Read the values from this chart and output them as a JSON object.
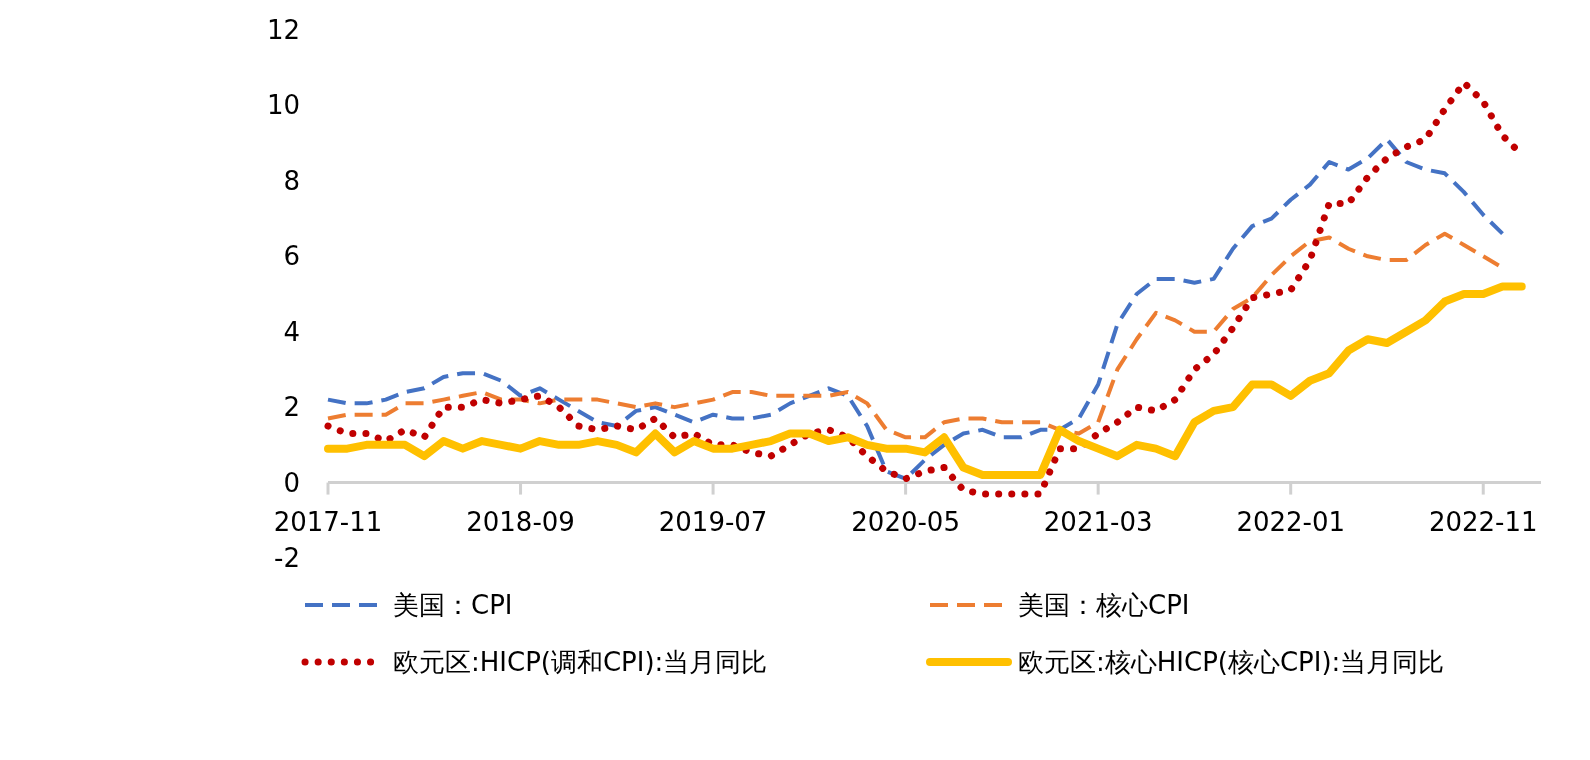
{
  "chart_data": {
    "type": "line",
    "legend": "bottom",
    "x": [
      "2017-11",
      "2017-12",
      "2018-01",
      "2018-02",
      "2018-03",
      "2018-04",
      "2018-05",
      "2018-06",
      "2018-07",
      "2018-08",
      "2018-09",
      "2018-10",
      "2018-11",
      "2018-12",
      "2019-01",
      "2019-02",
      "2019-03",
      "2019-04",
      "2019-05",
      "2019-06",
      "2019-07",
      "2019-08",
      "2019-09",
      "2019-10",
      "2019-11",
      "2019-12",
      "2020-01",
      "2020-02",
      "2020-03",
      "2020-04",
      "2020-05",
      "2020-06",
      "2020-07",
      "2020-08",
      "2020-09",
      "2020-10",
      "2020-11",
      "2020-12",
      "2021-01",
      "2021-02",
      "2021-03",
      "2021-04",
      "2021-05",
      "2021-06",
      "2021-07",
      "2021-08",
      "2021-09",
      "2021-10",
      "2021-11",
      "2021-12",
      "2022-01",
      "2022-02",
      "2022-03",
      "2022-04",
      "2022-05",
      "2022-06",
      "2022-07",
      "2022-08",
      "2022-09",
      "2022-10",
      "2022-11",
      "2022-12",
      "2023-01"
    ],
    "xlim": [
      "2017-11",
      "2023-02"
    ],
    "xticks": [
      "2017-11",
      "2018-09",
      "2019-07",
      "2020-05",
      "2021-03",
      "2022-01",
      "2022-11"
    ],
    "ylim": [
      -2,
      12
    ],
    "yticks": [
      -2,
      0,
      2,
      4,
      6,
      8,
      10,
      12
    ],
    "series": [
      {
        "name": "美国：CPI",
        "color": "#4472c4",
        "line_style": "dashed",
        "values": [
          2.2,
          2.1,
          2.1,
          2.2,
          2.4,
          2.5,
          2.8,
          2.9,
          2.9,
          2.7,
          2.3,
          2.5,
          2.2,
          1.9,
          1.6,
          1.5,
          1.9,
          2.0,
          1.8,
          1.6,
          1.8,
          1.7,
          1.7,
          1.8,
          2.1,
          2.3,
          2.5,
          2.3,
          1.5,
          0.3,
          0.1,
          0.6,
          1.0,
          1.3,
          1.4,
          1.2,
          1.2,
          1.4,
          1.4,
          1.7,
          2.6,
          4.2,
          5.0,
          5.4,
          5.4,
          5.3,
          5.4,
          6.2,
          6.8,
          7.0,
          7.5,
          7.9,
          8.5,
          8.3,
          8.6,
          9.1,
          8.5,
          8.3,
          8.2,
          7.7,
          7.1,
          6.6,
          null
        ]
      },
      {
        "name": "美国：核心CPI",
        "color": "#ed7d31",
        "line_style": "dashed",
        "values": [
          1.7,
          1.8,
          1.8,
          1.8,
          2.1,
          2.1,
          2.2,
          2.3,
          2.4,
          2.2,
          2.2,
          2.1,
          2.2,
          2.2,
          2.2,
          2.1,
          2.0,
          2.1,
          2.0,
          2.1,
          2.2,
          2.4,
          2.4,
          2.3,
          2.3,
          2.3,
          2.3,
          2.4,
          2.1,
          1.4,
          1.2,
          1.2,
          1.6,
          1.7,
          1.7,
          1.6,
          1.6,
          1.6,
          1.4,
          1.3,
          1.6,
          3.0,
          3.8,
          4.5,
          4.3,
          4.0,
          4.0,
          4.6,
          4.9,
          5.5,
          6.0,
          6.4,
          6.5,
          6.2,
          6.0,
          5.9,
          5.9,
          6.3,
          6.6,
          6.3,
          6.0,
          5.7,
          null
        ]
      },
      {
        "name": "欧元区:HICP(调和CPI):当月同比",
        "color": "#c00000",
        "line_style": "dotted",
        "values": [
          1.5,
          1.3,
          1.3,
          1.1,
          1.4,
          1.2,
          2.0,
          2.0,
          2.2,
          2.1,
          2.2,
          2.3,
          2.0,
          1.5,
          1.4,
          1.5,
          1.4,
          1.7,
          1.2,
          1.3,
          1.0,
          1.0,
          0.8,
          0.7,
          1.0,
          1.3,
          1.4,
          1.2,
          0.7,
          0.3,
          0.1,
          0.3,
          0.4,
          -0.2,
          -0.3,
          -0.3,
          -0.3,
          -0.3,
          0.9,
          0.9,
          1.3,
          1.6,
          2.0,
          1.9,
          2.2,
          3.0,
          3.4,
          4.1,
          4.9,
          5.0,
          5.1,
          5.9,
          7.4,
          7.4,
          8.1,
          8.6,
          8.9,
          9.1,
          9.9,
          10.6,
          10.1,
          9.2,
          8.7
        ]
      },
      {
        "name": "欧元区:核心HICP(核心CPI):当月同比",
        "color": "#ffc000",
        "line_style": "solid",
        "values": [
          0.9,
          0.9,
          1.0,
          1.0,
          1.0,
          0.7,
          1.1,
          0.9,
          1.1,
          1.0,
          0.9,
          1.1,
          1.0,
          1.0,
          1.1,
          1.0,
          0.8,
          1.3,
          0.8,
          1.1,
          0.9,
          0.9,
          1.0,
          1.1,
          1.3,
          1.3,
          1.1,
          1.2,
          1.0,
          0.9,
          0.9,
          0.8,
          1.2,
          0.4,
          0.2,
          0.2,
          0.2,
          0.2,
          1.4,
          1.1,
          0.9,
          0.7,
          1.0,
          0.9,
          0.7,
          1.6,
          1.9,
          2.0,
          2.6,
          2.6,
          2.3,
          2.7,
          2.9,
          3.5,
          3.8,
          3.7,
          4.0,
          4.3,
          4.8,
          5.0,
          5.0,
          5.2,
          5.2
        ]
      }
    ]
  }
}
